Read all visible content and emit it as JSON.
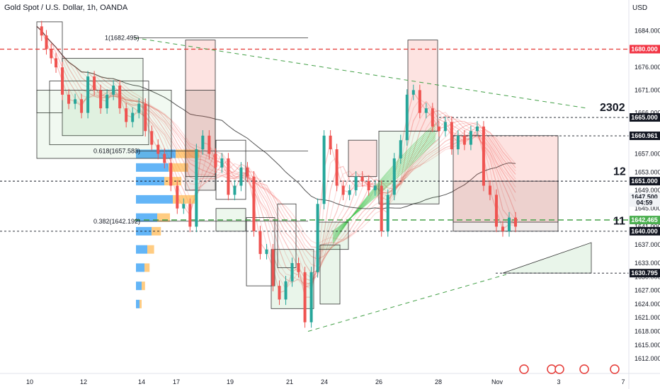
{
  "header": {
    "title": "Gold Spot / U.S. Dollar, 1h, OANDA",
    "currency": "USD"
  },
  "chart_data": {
    "type": "line",
    "title": "Gold Spot / U.S. Dollar, 1h, OANDA",
    "ylim": [
      1610,
      1688
    ],
    "y_ticks": [
      1684,
      1680,
      1676,
      1671,
      1666,
      1661,
      1657,
      1653,
      1649,
      1645,
      1641,
      1637,
      1633,
      1630,
      1627,
      1624,
      1621,
      1618,
      1615,
      1612
    ],
    "y_tick_labels": [
      "1684.000",
      "1680.000",
      "1676.000",
      "1671.000",
      "1666.000",
      "1661.000",
      "1657.000",
      "1653.000",
      "1649.000",
      "1645.000",
      "1641.000",
      "1637.000",
      "1633.000",
      "1630.000",
      "1627.000",
      "1624.000",
      "1621.000",
      "1618.000",
      "1615.000",
      "1612.000"
    ],
    "x_tick_labels": [
      "10",
      "12",
      "14",
      "17",
      "19",
      "21",
      "24",
      "26",
      "28",
      "Nov",
      "3",
      "7"
    ],
    "series": [
      {
        "x": [
          0,
          3,
          6,
          9,
          12,
          16,
          20,
          24,
          28,
          32,
          36,
          40,
          44,
          48,
          52,
          56,
          60,
          64,
          68,
          72,
          76,
          80,
          84,
          88,
          92,
          96,
          100,
          104,
          108,
          112,
          116,
          120,
          124,
          128,
          132,
          136,
          140,
          144,
          148,
          152,
          156,
          160,
          164,
          168,
          172,
          176,
          180,
          184,
          188,
          192,
          196,
          200,
          204,
          208,
          212,
          216,
          220,
          224,
          228,
          232,
          236,
          240,
          244,
          248,
          252,
          256,
          260,
          264,
          268,
          272,
          276,
          280,
          284,
          288,
          292,
          296,
          300,
          304,
          308,
          312,
          316,
          320,
          324,
          328,
          332,
          336,
          340,
          344,
          348,
          352,
          356,
          360,
          364,
          368,
          372,
          376,
          380,
          384,
          388,
          392,
          396,
          400
        ],
        "values": [
          1685,
          1683,
          1680,
          1678,
          1676,
          1670,
          1668,
          1669,
          1666,
          1674,
          1671,
          1667,
          1670,
          1672,
          1667,
          1664,
          1666,
          1668,
          1662,
          1659,
          1657,
          1655,
          1650,
          1645,
          1646,
          1641,
          1658,
          1661,
          1657,
          1654,
          1656,
          1648,
          1650,
          1654,
          1652,
          1640,
          1635,
          1636,
          1628,
          1625,
          1629,
          1633,
          1631,
          1620,
          1631,
          1646,
          1661,
          1658,
          1650,
          1648,
          1649,
          1652,
          1651,
          1649,
          1650,
          1640,
          1648,
          1656,
          1660,
          1670,
          1671,
          1666,
          1667,
          1663,
          1662,
          1664,
          1658,
          1661,
          1659,
          1662,
          1663,
          1650,
          1648,
          1641,
          1640,
          1643,
          1641,
          1638,
          1635,
          1640,
          1631,
          1633,
          1637,
          1641,
          1646,
          1648,
          1647,
          1647,
          1647,
          1647,
          1647,
          1647,
          1647,
          1647,
          1647,
          1647,
          1647,
          1647,
          1647,
          1647,
          1647,
          1647
        ]
      }
    ],
    "annotations": {
      "fib_high": "1(1682.495)",
      "fib_618": "0.618(1657.583)",
      "fib_382": "0.382(1642.192)",
      "big_2302": "2302",
      "big_12": "12",
      "big_11": "11"
    },
    "price_tags": [
      {
        "label": "1680.000",
        "value": 1680.0,
        "color": "#f23645"
      },
      {
        "label": "1665.000",
        "value": 1665.0,
        "color": "#131722"
      },
      {
        "label": "1660.961",
        "value": 1660.961,
        "color": "#131722"
      },
      {
        "label": "1651.000",
        "value": 1651.0,
        "color": "#131722"
      },
      {
        "label": "1647.500",
        "value": 1647.5,
        "color": "#f1f3f6"
      },
      {
        "label": "04:59",
        "value": 1646.3,
        "color": "#f1f3f6"
      },
      {
        "label": "1642.465",
        "value": 1642.465,
        "color": "#4caf50"
      },
      {
        "label": "1640.000",
        "value": 1640.0,
        "color": "#131722"
      },
      {
        "label": "1630.795",
        "value": 1630.795,
        "color": "#131722"
      }
    ],
    "colors": {
      "bull": "#26a69a",
      "bear": "#ef5350",
      "red_dash": "#e53935",
      "green_dash": "#43a047"
    }
  }
}
